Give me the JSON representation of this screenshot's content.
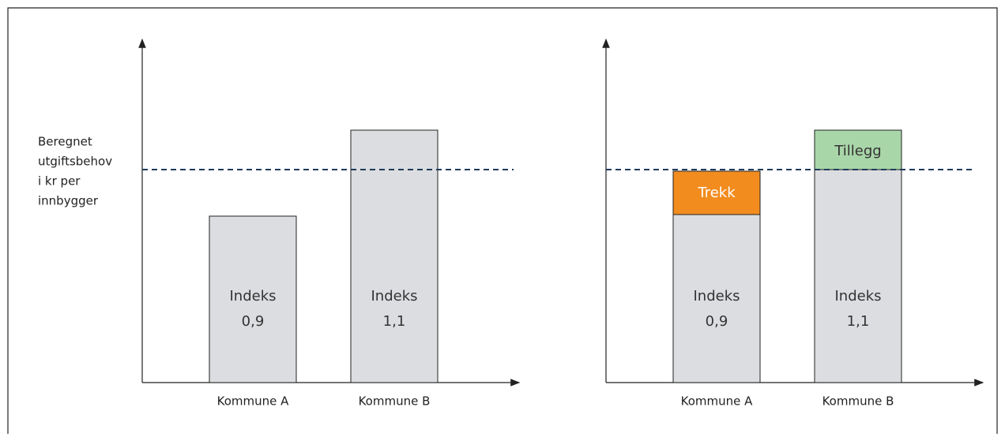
{
  "y_axis_label": [
    "Beregnet",
    "utgiftsbehov",
    "i kr per",
    "innbygger"
  ],
  "left_panel": {
    "bars": [
      {
        "category": "Kommune A",
        "label": [
          "Indeks",
          "0,9"
        ]
      },
      {
        "category": "Kommune B",
        "label": [
          "Indeks",
          "1,1"
        ]
      }
    ]
  },
  "right_panel": {
    "bars": [
      {
        "category": "Kommune A",
        "label": [
          "Indeks",
          "0,9"
        ],
        "segment": "Trekk"
      },
      {
        "category": "Kommune B",
        "label": [
          "Indeks",
          "1,1"
        ],
        "segment": "Tillegg"
      }
    ]
  }
}
